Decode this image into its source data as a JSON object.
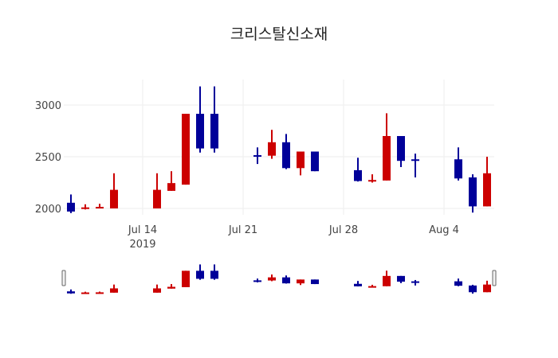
{
  "chart_data": {
    "type": "candlestick",
    "title": "크리스탈신소재",
    "xlabel": "",
    "ylabel": "",
    "ylim": [
      1930,
      3260
    ],
    "y_ticks": [
      2000,
      2500,
      3000
    ],
    "x_ticks": [
      {
        "date": "2019-07-14",
        "label": "Jul 14",
        "sublabel": "2019"
      },
      {
        "date": "2019-07-21",
        "label": "Jul 21",
        "sublabel": ""
      },
      {
        "date": "2019-07-28",
        "label": "Jul 28",
        "sublabel": ""
      },
      {
        "date": "2019-08-04",
        "label": "Aug 4",
        "sublabel": ""
      }
    ],
    "increasing_color": "#cc0000",
    "decreasing_color": "#000099",
    "grid": true,
    "range_slider": true,
    "series": [
      {
        "date": "2019-07-09",
        "open": 2055,
        "high": 2135,
        "low": 1955,
        "close": 1970
      },
      {
        "date": "2019-07-10",
        "open": 1995,
        "high": 2040,
        "low": 1990,
        "close": 2010
      },
      {
        "date": "2019-07-11",
        "open": 2000,
        "high": 2045,
        "low": 2000,
        "close": 2015
      },
      {
        "date": "2019-07-12",
        "open": 2000,
        "high": 2340,
        "low": 2000,
        "close": 2180
      },
      {
        "date": "2019-07-15",
        "open": 2000,
        "high": 2340,
        "low": 2000,
        "close": 2180
      },
      {
        "date": "2019-07-16",
        "open": 2170,
        "high": 2360,
        "low": 2170,
        "close": 2245
      },
      {
        "date": "2019-07-17",
        "open": 2230,
        "high": 2915,
        "low": 2230,
        "close": 2915
      },
      {
        "date": "2019-07-18",
        "open": 2915,
        "high": 3180,
        "low": 2540,
        "close": 2580
      },
      {
        "date": "2019-07-19",
        "open": 2915,
        "high": 3180,
        "low": 2540,
        "close": 2580
      },
      {
        "date": "2019-07-22",
        "open": 2515,
        "high": 2590,
        "low": 2430,
        "close": 2505
      },
      {
        "date": "2019-07-23",
        "open": 2510,
        "high": 2760,
        "low": 2480,
        "close": 2640
      },
      {
        "date": "2019-07-24",
        "open": 2640,
        "high": 2720,
        "low": 2380,
        "close": 2390
      },
      {
        "date": "2019-07-25",
        "open": 2390,
        "high": 2550,
        "low": 2320,
        "close": 2550
      },
      {
        "date": "2019-07-26",
        "open": 2550,
        "high": 2550,
        "low": 2360,
        "close": 2360
      },
      {
        "date": "2019-07-29",
        "open": 2370,
        "high": 2490,
        "low": 2260,
        "close": 2265
      },
      {
        "date": "2019-07-30",
        "open": 2265,
        "high": 2330,
        "low": 2250,
        "close": 2275
      },
      {
        "date": "2019-07-31",
        "open": 2270,
        "high": 2920,
        "low": 2270,
        "close": 2700
      },
      {
        "date": "2019-08-01",
        "open": 2700,
        "high": 2700,
        "low": 2400,
        "close": 2460
      },
      {
        "date": "2019-08-02",
        "open": 2475,
        "high": 2530,
        "low": 2300,
        "close": 2465
      },
      {
        "date": "2019-08-05",
        "open": 2475,
        "high": 2590,
        "low": 2270,
        "close": 2290
      },
      {
        "date": "2019-08-06",
        "open": 2300,
        "high": 2330,
        "low": 1960,
        "close": 2020
      },
      {
        "date": "2019-08-07",
        "open": 2020,
        "high": 2500,
        "low": 2020,
        "close": 2340
      }
    ]
  }
}
